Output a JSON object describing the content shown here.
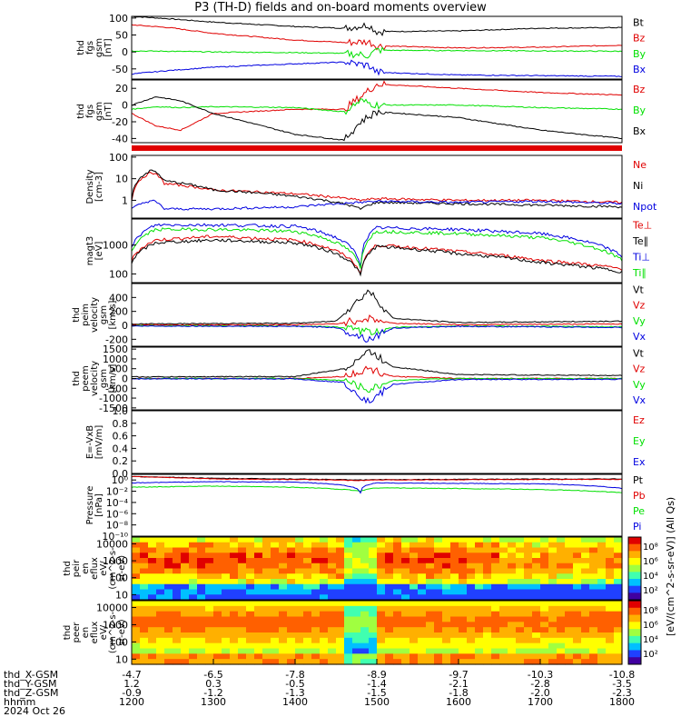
{
  "title": "P3 (TH-D) fields and on-board moments overview",
  "date_label": "2024 Oct 26",
  "colors": {
    "black": "#000000",
    "red": "#e00000",
    "green": "#00e000",
    "blue": "#0000e0"
  },
  "chart_data": [
    {
      "type": "line",
      "panel": "thd_fgs_gsm_mag",
      "ylabel": [
        "thd",
        "fgs",
        "gsm",
        "[nT]"
      ],
      "yticks": [
        "100",
        "50",
        "0",
        "-50"
      ],
      "ytick_values": [
        100,
        50,
        0,
        -50
      ],
      "ylim": [
        -80,
        105
      ],
      "legend": [
        {
          "name": "Bt",
          "color": "black"
        },
        {
          "name": "Bz",
          "color": "red"
        },
        {
          "name": "By",
          "color": "green"
        },
        {
          "name": "Bx",
          "color": "blue"
        }
      ],
      "x": [
        1200,
        1245,
        1300,
        1400,
        1460,
        1490,
        1500,
        1600,
        1700,
        1800
      ],
      "series": [
        {
          "name": "Bt",
          "color": "black",
          "values": [
            105,
            98,
            88,
            75,
            70,
            80,
            60,
            62,
            70,
            72
          ]
        },
        {
          "name": "Bz",
          "color": "red",
          "values": [
            80,
            72,
            55,
            35,
            28,
            30,
            18,
            12,
            14,
            20
          ]
        },
        {
          "name": "By",
          "color": "green",
          "values": [
            3,
            2,
            0,
            -2,
            -4,
            -10,
            5,
            4,
            3,
            2
          ]
        },
        {
          "name": "Bx",
          "color": "blue",
          "values": [
            -65,
            -55,
            -45,
            -35,
            -30,
            -40,
            -60,
            -68,
            -70,
            -72
          ]
        }
      ]
    },
    {
      "type": "line",
      "panel": "thd_fgs_gsm",
      "ylabel": [
        "thd",
        "fgs",
        "gsm",
        "[nT]"
      ],
      "yticks": [
        "20",
        "0",
        "-20",
        "-40"
      ],
      "ytick_values": [
        20,
        0,
        -20,
        -40
      ],
      "ylim": [
        -45,
        30
      ],
      "legend": [
        {
          "name": "Bz",
          "color": "red"
        },
        {
          "name": "By",
          "color": "green"
        },
        {
          "name": "Bx",
          "color": "black"
        }
      ],
      "x": [
        1200,
        1230,
        1260,
        1300,
        1400,
        1460,
        1480,
        1500,
        1600,
        1700,
        1800
      ],
      "series": [
        {
          "name": "Bz",
          "color": "red",
          "values": [
            -10,
            -25,
            -30,
            -10,
            -5,
            -5,
            10,
            25,
            20,
            15,
            12
          ]
        },
        {
          "name": "By",
          "color": "green",
          "values": [
            -5,
            -2,
            -3,
            -2,
            -3,
            -8,
            5,
            0,
            0,
            -3,
            -5
          ]
        },
        {
          "name": "Bx",
          "color": "black",
          "values": [
            0,
            10,
            5,
            -10,
            -35,
            -42,
            -20,
            -8,
            -15,
            -30,
            -40
          ]
        }
      ]
    },
    {
      "type": "line",
      "panel": "density",
      "ylabel": [
        "Density",
        "[cm-3]"
      ],
      "ylog": true,
      "yticks": [
        "100",
        "10",
        "1"
      ],
      "ytick_values": [
        100,
        10,
        1
      ],
      "ylim": [
        0.15,
        120
      ],
      "legend": [
        {
          "name": "Ne",
          "color": "red"
        },
        {
          "name": "Ni",
          "color": "black"
        },
        {
          "name": "Npot",
          "color": "blue"
        }
      ],
      "x": [
        1200,
        1225,
        1240,
        1300,
        1400,
        1480,
        1500,
        1600,
        1700,
        1800
      ],
      "series": [
        {
          "name": "Ne",
          "color": "red",
          "values": [
            1,
            20,
            6,
            3,
            2,
            1,
            1.2,
            1,
            1,
            0.8
          ]
        },
        {
          "name": "Ni",
          "color": "black",
          "values": [
            1,
            25,
            8,
            3,
            1.5,
            0.4,
            0.8,
            0.7,
            0.6,
            0.5
          ]
        },
        {
          "name": "Npot",
          "color": "blue",
          "values": [
            0.4,
            1,
            0.4,
            0.4,
            0.5,
            0.8,
            0.9,
            0.8,
            0.9,
            0.7
          ]
        }
      ]
    },
    {
      "type": "line",
      "panel": "temperature",
      "ylabel": [
        "magt3",
        "[eV]"
      ],
      "ylog": true,
      "yticks": [
        "1000",
        "100"
      ],
      "ytick_values": [
        1000,
        100
      ],
      "ylim": [
        50,
        8000
      ],
      "legend": [
        {
          "name": "Te⊥",
          "color": "red"
        },
        {
          "name": "Te∥",
          "color": "black"
        },
        {
          "name": "Ti⊥",
          "color": "blue"
        },
        {
          "name": "Ti∥",
          "color": "green"
        }
      ],
      "x": [
        1200,
        1230,
        1300,
        1400,
        1480,
        1500,
        1600,
        1700,
        1800
      ],
      "series": [
        {
          "name": "Te⊥",
          "color": "red",
          "values": [
            300,
            1500,
            2000,
            1500,
            100,
            1000,
            600,
            300,
            150
          ]
        },
        {
          "name": "Te∥",
          "color": "black",
          "values": [
            250,
            1200,
            1500,
            1200,
            90,
            900,
            500,
            250,
            120
          ]
        },
        {
          "name": "Ti⊥",
          "color": "blue",
          "values": [
            800,
            5000,
            5000,
            4500,
            200,
            4000,
            3500,
            2500,
            400
          ]
        },
        {
          "name": "Ti∥",
          "color": "green",
          "values": [
            600,
            3500,
            3500,
            3000,
            150,
            3000,
            2500,
            1800,
            300
          ]
        }
      ]
    },
    {
      "type": "line",
      "panel": "peim_velocity",
      "ylabel": [
        "thd",
        "peim",
        "velocity",
        "gsm",
        "[km/s]"
      ],
      "yticks": [
        "400",
        "200",
        "0",
        "-200"
      ],
      "ytick_values": [
        400,
        200,
        0,
        -200
      ],
      "ylim": [
        -300,
        600
      ],
      "legend": [
        {
          "name": "Vt",
          "color": "black"
        },
        {
          "name": "Vz",
          "color": "red"
        },
        {
          "name": "Vy",
          "color": "green"
        },
        {
          "name": "Vx",
          "color": "blue"
        }
      ],
      "x": [
        1200,
        1400,
        1450,
        1490,
        1520,
        1600,
        1800
      ],
      "series": [
        {
          "name": "Vt",
          "color": "black",
          "values": [
            20,
            30,
            60,
            500,
            100,
            40,
            60
          ]
        },
        {
          "name": "Vz",
          "color": "red",
          "values": [
            5,
            10,
            20,
            100,
            30,
            10,
            20
          ]
        },
        {
          "name": "Vy",
          "color": "green",
          "values": [
            -5,
            -10,
            -20,
            -100,
            -30,
            -10,
            -20
          ]
        },
        {
          "name": "Vx",
          "color": "blue",
          "values": [
            -10,
            -15,
            -30,
            -200,
            -40,
            -15,
            -30
          ]
        }
      ]
    },
    {
      "type": "line",
      "panel": "peem_velocity",
      "ylabel": [
        "thd",
        "peem",
        "velocity",
        "gsm",
        "[km/s]"
      ],
      "yticks": [
        "1500",
        "1000",
        "500",
        "0",
        "-500",
        "-1000",
        "-1500"
      ],
      "ytick_values": [
        1500,
        1000,
        500,
        0,
        -500,
        -1000,
        -1500
      ],
      "ylim": [
        -1600,
        1600
      ],
      "legend": [
        {
          "name": "Vt",
          "color": "black"
        },
        {
          "name": "Vz",
          "color": "red"
        },
        {
          "name": "Vy",
          "color": "green"
        },
        {
          "name": "Vx",
          "color": "blue"
        }
      ],
      "x": [
        1200,
        1400,
        1460,
        1490,
        1520,
        1600,
        1800
      ],
      "series": [
        {
          "name": "Vt",
          "color": "black",
          "values": [
            80,
            100,
            500,
            1400,
            600,
            200,
            150
          ]
        },
        {
          "name": "Vz",
          "color": "red",
          "values": [
            0,
            0,
            100,
            500,
            100,
            0,
            0
          ]
        },
        {
          "name": "Vy",
          "color": "green",
          "values": [
            0,
            0,
            -100,
            -600,
            -100,
            0,
            0
          ]
        },
        {
          "name": "Vx",
          "color": "blue",
          "values": [
            -20,
            -20,
            -200,
            -1200,
            -300,
            -50,
            -40
          ]
        }
      ]
    },
    {
      "type": "line",
      "panel": "efield",
      "ylabel": [
        "E=-VxB",
        "[mV/m]"
      ],
      "yticks": [
        "1.0",
        "0.8",
        "0.6",
        "0.4",
        "0.2",
        "0.0"
      ],
      "ytick_values": [
        1.0,
        0.8,
        0.6,
        0.4,
        0.2,
        0.0
      ],
      "ylim": [
        0,
        1
      ],
      "legend": [
        {
          "name": "Ez",
          "color": "red"
        },
        {
          "name": "Ey",
          "color": "green"
        },
        {
          "name": "Ex",
          "color": "blue"
        }
      ],
      "x": [],
      "series": []
    },
    {
      "type": "line",
      "panel": "pressure",
      "ylabel": [
        "Pressure",
        "[nPa]"
      ],
      "ylog": true,
      "yticks": [
        "10⁰",
        "10⁻²",
        "10⁻⁴",
        "10⁻⁶",
        "10⁻⁸",
        "10⁻¹⁰"
      ],
      "ytick_values": [
        1,
        0.01,
        0.0001,
        1e-06,
        1e-08,
        1e-10
      ],
      "ylim": [
        1e-10,
        10
      ],
      "legend": [
        {
          "name": "Pt",
          "color": "black"
        },
        {
          "name": "Pb",
          "color": "red"
        },
        {
          "name": "Pe",
          "color": "green"
        },
        {
          "name": "Pi",
          "color": "blue"
        }
      ],
      "x": [
        1200,
        1300,
        1400,
        1480,
        1500,
        1600,
        1700,
        1800
      ],
      "series": [
        {
          "name": "Pt",
          "color": "black",
          "values": [
            4,
            2,
            1.5,
            1,
            1.2,
            1.3,
            1.5,
            1.5
          ]
        },
        {
          "name": "Pb",
          "color": "red",
          "values": [
            4,
            1.5,
            1.2,
            0.8,
            1,
            1.1,
            1.2,
            1.3
          ]
        },
        {
          "name": "Pe",
          "color": "green",
          "values": [
            0.05,
            0.08,
            0.05,
            0.01,
            0.04,
            0.03,
            0.02,
            0.005
          ]
        },
        {
          "name": "Pi",
          "color": "blue",
          "values": [
            0.3,
            0.5,
            0.4,
            0.005,
            0.3,
            0.25,
            0.2,
            0.03
          ]
        }
      ]
    },
    {
      "type": "heatmap",
      "panel": "peir_en_eflux",
      "ylabel": [
        "thd",
        "peir",
        "en",
        "eflux",
        "eV/",
        "(cm^2-s-",
        "sr-eV)"
      ],
      "yticks": [
        "10000",
        "1000",
        "100",
        "10"
      ],
      "ytick_values": [
        10000,
        1000,
        100,
        10
      ],
      "ylim": [
        5,
        25000
      ],
      "ylog": true
    },
    {
      "type": "heatmap",
      "panel": "peer_en_eflux",
      "ylabel": [
        "thd",
        "peer",
        "en",
        "eflux",
        "eV/",
        "(cm^2-s-",
        "sr-eV)"
      ],
      "yticks": [
        "10000",
        "1000",
        "100",
        "10"
      ],
      "ytick_values": [
        10000,
        1000,
        100,
        10
      ],
      "ylim": [
        5,
        25000
      ],
      "ylog": true
    }
  ],
  "colorbars": [
    {
      "ticks": [
        "10⁸",
        "10⁶",
        "10⁴",
        "10²"
      ],
      "label": "[eV/(cm^2-s-sr-eV)] (All Qs)"
    },
    {
      "ticks": [
        "10⁸",
        "10⁶",
        "10⁴",
        "10²"
      ],
      "label": ""
    }
  ],
  "x_axis": {
    "ticks": [
      1200,
      1300,
      1400,
      1500,
      1600,
      1700,
      1800
    ],
    "rows": [
      {
        "label": "thd_X-GSM",
        "values": [
          "-4.7",
          "-6.5",
          "-7.8",
          "-8.9",
          "-9.7",
          "-10.3",
          "-10.8"
        ]
      },
      {
        "label": "thd_Y-GSM",
        "values": [
          "1.2",
          "0.3",
          "-0.5",
          "-1.4",
          "-2.1",
          "-2.8",
          "-3.5"
        ]
      },
      {
        "label": "thd_Z-GSM",
        "values": [
          "-0.9",
          "-1.2",
          "-1.3",
          "-1.5",
          "-1.8",
          "-2.0",
          "-2.3"
        ]
      },
      {
        "label": "hhmm",
        "values": [
          "1200",
          "1300",
          "1400",
          "1500",
          "1600",
          "1700",
          "1800"
        ]
      }
    ]
  }
}
